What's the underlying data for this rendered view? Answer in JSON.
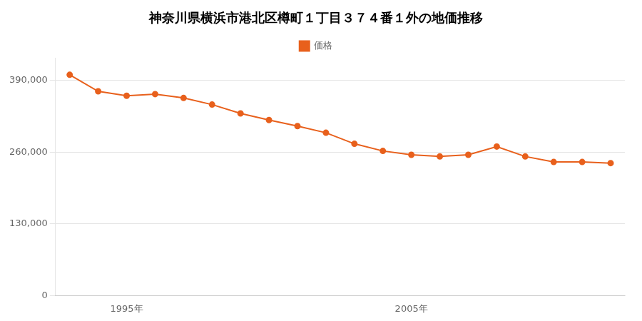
{
  "chart_data": {
    "type": "line",
    "title": "神奈川県横浜市港北区樽町１丁目３７４番１外の地価推移",
    "x": [
      1993,
      1994,
      1995,
      1996,
      1997,
      1998,
      1999,
      2000,
      2001,
      2002,
      2003,
      2004,
      2005,
      2006,
      2007,
      2008,
      2009,
      2010,
      2011,
      2012
    ],
    "series": [
      {
        "name": "価格",
        "color": "#E8601C",
        "marker": "circle",
        "values": [
          400000,
          370000,
          362000,
          365000,
          358000,
          346000,
          330000,
          318000,
          307000,
          295000,
          275000,
          262000,
          255000,
          252000,
          255000,
          270000,
          252000,
          242000,
          242000,
          240000
        ]
      }
    ],
    "xlim": [
      1992.5,
      2012.5
    ],
    "xticks": [
      {
        "value": 1995,
        "label": "1995年"
      },
      {
        "value": 2005,
        "label": "2005年"
      }
    ],
    "ylim": [
      0,
      430000
    ],
    "yticks": [
      0,
      {
        "value": 130000,
        "label": "130,000"
      },
      {
        "value": 260000,
        "label": "260,000"
      },
      {
        "value": 390000,
        "label": "390,000"
      }
    ],
    "grid": "y",
    "legend": "top"
  }
}
